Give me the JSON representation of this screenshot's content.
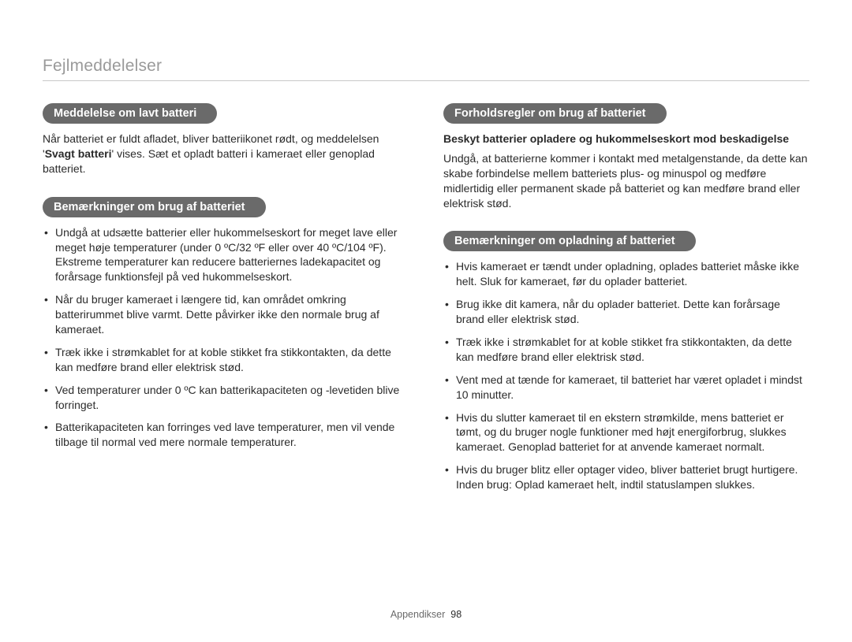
{
  "page": {
    "title": "Fejlmeddelelser",
    "footer_label": "Appendikser",
    "footer_page": "98"
  },
  "left": {
    "sec1": {
      "pill": "Meddelelse om lavt batteri",
      "para_pre": "Når batteriet er fuldt afladet, bliver batteriikonet rødt, og meddelelsen '",
      "para_strong": "Svagt batteri",
      "para_post": "' vises. Sæt et opladt batteri i kameraet eller genoplad batteriet."
    },
    "sec2": {
      "pill": "Bemærkninger om brug af batteriet",
      "items": [
        "Undgå at udsætte batterier eller hukommelseskort for meget lave eller meget høje temperaturer (under 0 ºC/32 ºF eller over 40 ºC/104 ºF). Ekstreme temperaturer kan reducere batteriernes ladekapacitet og forårsage funktionsfejl på ved hukommelseskort.",
        "Når du bruger kameraet i længere tid, kan området omkring batterirummet blive varmt. Dette påvirker ikke den normale brug af kameraet.",
        "Træk ikke i strømkablet for at koble stikket fra stikkontakten, da dette kan medføre brand eller elektrisk stød.",
        "Ved temperaturer under 0 ºC kan batterikapaciteten og -levetiden blive forringet.",
        "Batterikapaciteten kan forringes ved lave temperaturer, men vil vende tilbage til normal ved mere normale temperaturer."
      ]
    }
  },
  "right": {
    "sec1": {
      "pill": "Forholdsregler om brug af batteriet",
      "subhead": "Beskyt batterier opladere og hukommelseskort mod beskadigelse",
      "para": "Undgå, at batterierne kommer i kontakt med metalgenstande, da dette kan skabe forbindelse mellem batteriets plus- og minuspol og medføre midlertidig eller permanent skade på batteriet og kan medføre brand eller elektrisk stød."
    },
    "sec2": {
      "pill": "Bemærkninger om opladning af batteriet",
      "items": [
        "Hvis kameraet er tændt under opladning, oplades batteriet måske ikke helt. Sluk for kameraet, før du oplader batteriet.",
        "Brug ikke dit kamera, når du oplader batteriet. Dette kan forårsage brand eller elektrisk stød.",
        "Træk ikke i strømkablet for at koble stikket fra stikkontakten, da dette kan medføre brand eller elektrisk stød.",
        "Vent med at tænde for kameraet, til batteriet har været opladet i mindst 10 minutter.",
        "Hvis du slutter kameraet til en ekstern strømkilde, mens batteriet er tømt, og du bruger nogle funktioner med højt energiforbrug, slukkes kameraet. Genoplad batteriet for at anvende kameraet normalt.",
        "Hvis du bruger blitz eller optager video, bliver batteriet brugt hurtigere. Inden brug: Oplad kameraet helt, indtil statuslampen slukkes."
      ]
    }
  }
}
